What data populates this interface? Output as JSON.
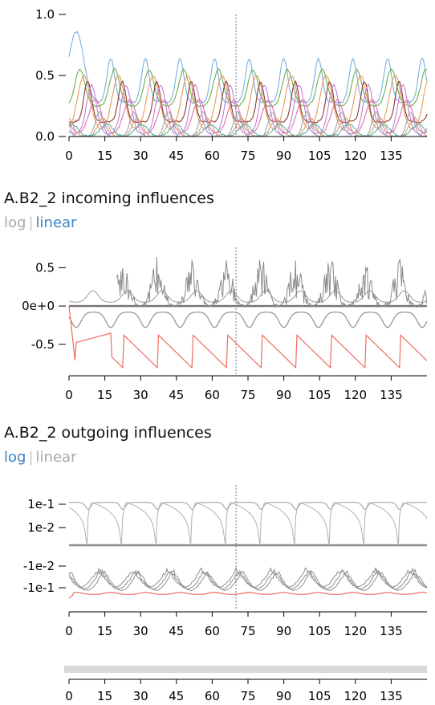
{
  "colors": {
    "axis": "#000000",
    "marker": "#777777",
    "influence_gray": "#8f8f8f",
    "influence_red": "#ef6b5e",
    "toggle_active": "#3f83c2",
    "toggle_inactive": "#a8a8a8",
    "brush": "#d8d8d8"
  },
  "panels": {
    "incoming": {
      "title": "A.B2_2 incoming influences",
      "scale_log": "log",
      "scale_linear": "linear",
      "active": "linear"
    },
    "outgoing": {
      "title": "A.B2_2 outgoing influences",
      "scale_log": "log",
      "scale_linear": "linear",
      "active": "log"
    }
  },
  "chart_data": [
    {
      "type": "line",
      "name": "trajectories",
      "x_range": [
        0,
        150
      ],
      "ylim": [
        0,
        1.0
      ],
      "yticks": [
        {
          "v": 0.0,
          "label": "0.0"
        },
        {
          "v": 0.5,
          "label": "0.5"
        },
        {
          "v": 1.0,
          "label": "1.0"
        }
      ],
      "xticks": [
        0,
        15,
        30,
        45,
        60,
        75,
        90,
        105,
        120,
        135
      ],
      "marker_x": 70,
      "period": 14.5,
      "series": [
        {
          "color": "#7aaee0",
          "values_note": "peaks",
          "peak_first": 0.86,
          "peak": 0.64,
          "trough": 0.28
        },
        {
          "color": "#6ab04c",
          "peak": 0.55,
          "trough": 0.25
        },
        {
          "color": "#e89a5a",
          "peak": 0.5,
          "trough": 0.05
        },
        {
          "color": "#8b3a2e",
          "peak": 0.45,
          "trough": 0.12
        },
        {
          "color": "#c07fd8",
          "peak": 0.42,
          "trough": 0.02
        },
        {
          "color": "#e36ea8",
          "peak": 0.3,
          "trough": 0.02
        },
        {
          "color": "#9aa7b4",
          "peak": 0.2,
          "trough": 0.0
        },
        {
          "color": "#d4a27a",
          "peak": 0.15,
          "trough": 0.0
        },
        {
          "color": "#5ab4a8",
          "peak": 0.1,
          "trough": 0.0
        }
      ]
    },
    {
      "type": "line",
      "name": "incoming",
      "x_range": [
        0,
        150
      ],
      "ylim": [
        -0.9,
        0.85
      ],
      "yticks": [
        {
          "v": 0.5,
          "label": "0.5"
        },
        {
          "v": 0.0,
          "label": "0e+0"
        },
        {
          "v": -0.5,
          "label": "-0.5"
        }
      ],
      "xticks": [
        0,
        15,
        30,
        45,
        60,
        75,
        90,
        105,
        120,
        135
      ],
      "marker_x": 70,
      "period": 14.5,
      "series": [
        {
          "color": "#8f8f8f",
          "peak": 0.2,
          "trough": 0.0
        },
        {
          "color": "#8f8f8f",
          "peak": 0.7,
          "trough": -0.25
        },
        {
          "color": "#ef6b5e",
          "peak": -0.35,
          "trough": -0.85
        }
      ]
    },
    {
      "type": "line",
      "name": "outgoing",
      "x_range": [
        0,
        150
      ],
      "yscale": "symlog",
      "yticks": [
        {
          "v": 0.1,
          "label": "1e-1"
        },
        {
          "v": 0.01,
          "label": "1e-2"
        },
        {
          "v": -0.01,
          "label": "-1e-2"
        },
        {
          "v": -0.1,
          "label": "-1e-1"
        }
      ],
      "xticks": [
        0,
        15,
        30,
        45,
        60,
        75,
        90,
        105,
        120,
        135
      ],
      "marker_x": 70,
      "period": 14.5,
      "series": [
        {
          "color": "#9a9a9a",
          "peak": 0.12,
          "trough": 0.0
        },
        {
          "color": "#8f8f8f",
          "peak": -0.005,
          "trough": -0.1
        },
        {
          "color": "#ef6b5e",
          "peak": -0.15,
          "trough": -0.25
        }
      ]
    },
    {
      "type": "line",
      "name": "brush-axis",
      "x_range": [
        0,
        150
      ],
      "xticks": [
        0,
        15,
        30,
        45,
        60,
        75,
        90,
        105,
        120,
        135
      ]
    }
  ]
}
